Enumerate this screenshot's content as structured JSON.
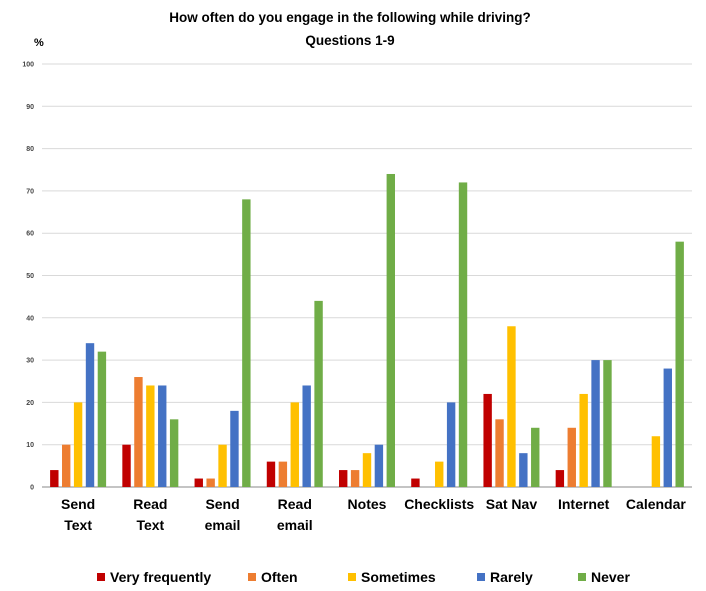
{
  "chart_data": {
    "type": "bar",
    "title": "How often do you engage in the following while driving?",
    "subtitle": "Questions 1-9",
    "ylabel": "%",
    "ylim": [
      0,
      100
    ],
    "yticks": [
      0,
      10,
      20,
      30,
      40,
      50,
      60,
      70,
      80,
      90,
      100
    ],
    "grid": true,
    "legend_position": "bottom",
    "categories": [
      [
        "Send",
        "Text"
      ],
      [
        "Read",
        "Text"
      ],
      [
        "Send",
        "email"
      ],
      [
        "Read",
        "email"
      ],
      [
        "Notes"
      ],
      [
        "Checklists"
      ],
      [
        "Sat Nav"
      ],
      [
        "Internet"
      ],
      [
        "Calendar"
      ]
    ],
    "series": [
      {
        "name": "Very frequently",
        "color": "#c00000",
        "values": [
          4,
          10,
          2,
          6,
          4,
          2,
          22,
          4,
          0
        ]
      },
      {
        "name": "Often",
        "color": "#ed7d31",
        "values": [
          10,
          26,
          2,
          6,
          4,
          0,
          16,
          14,
          0
        ]
      },
      {
        "name": "Sometimes",
        "color": "#ffc000",
        "values": [
          20,
          24,
          10,
          20,
          8,
          6,
          38,
          22,
          12
        ]
      },
      {
        "name": "Rarely",
        "color": "#4472c4",
        "values": [
          34,
          24,
          18,
          24,
          10,
          20,
          8,
          30,
          28
        ]
      },
      {
        "name": "Never",
        "color": "#70ad47",
        "values": [
          32,
          16,
          68,
          44,
          74,
          72,
          14,
          30,
          58
        ]
      }
    ]
  }
}
